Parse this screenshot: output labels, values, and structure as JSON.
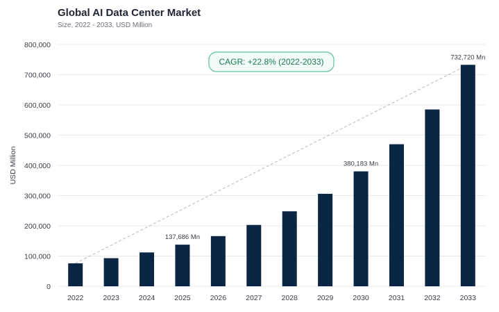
{
  "header": {
    "title": "Global AI Data Center Market",
    "subtitle": "Size, 2022 - 2033, USD Million"
  },
  "colors": {
    "bar": "#0b2545",
    "grid": "#e8e8ec",
    "trend": "#b8b8b8",
    "cagr_border": "#5cc39a",
    "cagr_fill": "#f2fbf7"
  },
  "chart_data": {
    "type": "bar",
    "title": "Global AI Data Center Market",
    "subtitle": "Size, 2022 - 2033, USD Million",
    "xlabel": "",
    "ylabel": "USD Million",
    "categories": [
      "2022",
      "2023",
      "2024",
      "2025",
      "2026",
      "2027",
      "2028",
      "2029",
      "2030",
      "2031",
      "2032",
      "2033"
    ],
    "values": [
      76000,
      93000,
      112000,
      137686,
      166000,
      203000,
      248000,
      306000,
      380183,
      470000,
      585000,
      732720
    ],
    "ylim": [
      0,
      800000
    ],
    "yticks": [
      0,
      100000,
      200000,
      300000,
      400000,
      500000,
      600000,
      700000,
      800000
    ],
    "ytick_labels": [
      "0",
      "100,000",
      "200,000",
      "300,000",
      "400,000",
      "500,000",
      "600,000",
      "700,000",
      "800,000"
    ],
    "grid": true,
    "data_labels": [
      {
        "index": 3,
        "text": "137,686 Mn"
      },
      {
        "index": 8,
        "text": "380,183 Mn"
      },
      {
        "index": 11,
        "text": "732,720 Mn"
      }
    ],
    "trendline": {
      "from_index": 0,
      "to_index": 11,
      "style": "dashed"
    },
    "annotation": {
      "text": "CAGR: +22.8% (2022-2033)"
    }
  }
}
